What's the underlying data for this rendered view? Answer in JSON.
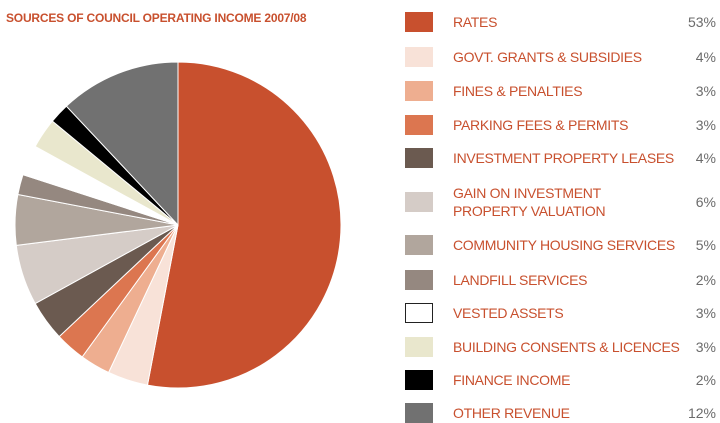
{
  "chart_data": {
    "type": "pie",
    "title": "SOURCES OF COUNCIL OPERATING INCOME 2007/08",
    "categories": [
      "RATES",
      "GOVT. GRANTS & SUBSIDIES",
      "FINES & PENALTIES",
      "PARKING FEES & PERMITS",
      "INVESTMENT PROPERTY LEASES",
      "GAIN ON INVESTMENT\nPROPERTY VALUATION",
      "COMMUNITY HOUSING SERVICES",
      "LANDFILL SERVICES",
      "VESTED ASSETS",
      "BUILDING CONSENTS & LICENCES",
      "FINANCE INCOME",
      "OTHER REVENUE"
    ],
    "values": [
      53,
      4,
      3,
      3,
      4,
      6,
      5,
      2,
      3,
      3,
      2,
      12
    ],
    "value_labels": [
      "53%",
      "4%",
      "3%",
      "3%",
      "4%",
      "6%",
      "5%",
      "2%",
      "3%",
      "3%",
      "2%",
      "12%"
    ],
    "colors": [
      "#c8502e",
      "#f8e2d8",
      "#eeae90",
      "#dc7650",
      "#6b5a50",
      "#d5ccc7",
      "#b1a69d",
      "#958880",
      "#ffffff",
      "#e9e7cd",
      "#000000",
      "#717171"
    ]
  }
}
